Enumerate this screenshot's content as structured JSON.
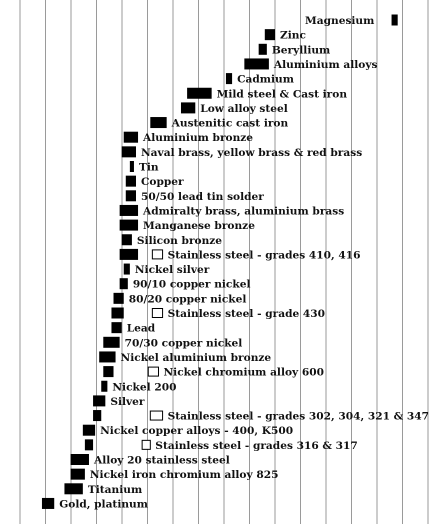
{
  "colors": {
    "gridline": "#9a9a9a",
    "active_bar": "#000000",
    "passive_bar_fill": "#ffffff",
    "passive_bar_stroke": "#000000",
    "text": "#111111"
  },
  "chart_data": {
    "type": "bar",
    "orientation": "horizontal-range",
    "title": "",
    "xlabel": "",
    "ylabel": "",
    "xlim": [
      -1.7,
      0.1
    ],
    "grid": true,
    "legend": "none",
    "categories": [
      "Magnesium",
      "Zinc",
      "Beryllium",
      "Aluminium alloys",
      "Cadmium",
      "Mild steel & Cast iron",
      "Low alloy steel",
      "Austenitic cast iron",
      "Aluminium bronze",
      "Naval brass, yellow brass & red brass",
      "Tin",
      "Copper",
      "50/50 lead tin solder",
      "Admiralty brass, aluminium brass",
      "Manganese bronze",
      "Silicon bronze",
      "Stainless steel  - grades 410, 416",
      "Nickel silver",
      "90/10 copper nickel",
      "80/20 copper nickel",
      "Stainless steel  - grade 430",
      "Lead",
      "70/30 copper nickel",
      "Nickel aluminium bronze",
      "Nickel chromium alloy 600",
      "Nickel 200",
      "Silver",
      "Stainless steel - grades 302, 304, 321 & 347",
      "Nickel copper  alloys - 400, K500",
      "Stainless steel - grades 316 & 317",
      "Alloy 20 stainless steel",
      "Nickel iron chromium alloy  825",
      "Titanium",
      "Gold, platinum"
    ],
    "series": [
      {
        "values": [
          [
            -1.63,
            -1.6
          ],
          [
            -1.03,
            -0.98
          ],
          [
            -0.99,
            -0.95
          ],
          [
            -1.0,
            -0.88
          ],
          [
            -0.82,
            -0.79
          ],
          [
            -0.72,
            -0.6
          ],
          [
            -0.64,
            -0.57
          ],
          [
            -0.5,
            -0.42
          ],
          [
            -0.36,
            -0.29
          ],
          [
            -0.35,
            -0.28
          ],
          [
            -0.34,
            -0.32
          ],
          [
            -0.35,
            -0.3
          ],
          [
            -0.35,
            -0.3
          ],
          [
            -0.36,
            -0.27
          ],
          [
            -0.36,
            -0.27
          ],
          [
            -0.33,
            -0.28
          ],
          [
            -0.36,
            -0.27
          ],
          [
            -0.32,
            -0.29
          ],
          [
            -0.31,
            -0.27
          ],
          [
            -0.29,
            -0.24
          ],
          [
            -0.29,
            -0.23
          ],
          [
            -0.28,
            -0.23
          ],
          [
            -0.27,
            -0.19
          ],
          [
            -0.25,
            -0.17
          ],
          [
            -0.24,
            -0.19
          ],
          [
            -0.21,
            -0.18
          ],
          [
            -0.2,
            -0.14
          ],
          [
            -0.18,
            -0.14
          ],
          [
            -0.15,
            -0.09
          ],
          [
            -0.14,
            -0.1
          ],
          [
            -0.12,
            -0.03
          ],
          [
            -0.1,
            -0.03
          ],
          [
            -0.09,
            -0.0
          ],
          [
            0.05,
            0.11
          ]
        ],
        "passive_values": [
          null,
          null,
          null,
          null,
          null,
          null,
          null,
          null,
          null,
          null,
          null,
          null,
          null,
          null,
          null,
          null,
          [
            -0.48,
            -0.43
          ],
          null,
          null,
          null,
          [
            -0.48,
            -0.43
          ],
          null,
          null,
          null,
          [
            -0.46,
            -0.41
          ],
          null,
          null,
          [
            -0.48,
            -0.42
          ],
          null,
          [
            -0.42,
            -0.38
          ],
          null,
          null,
          null,
          null
        ]
      }
    ]
  }
}
